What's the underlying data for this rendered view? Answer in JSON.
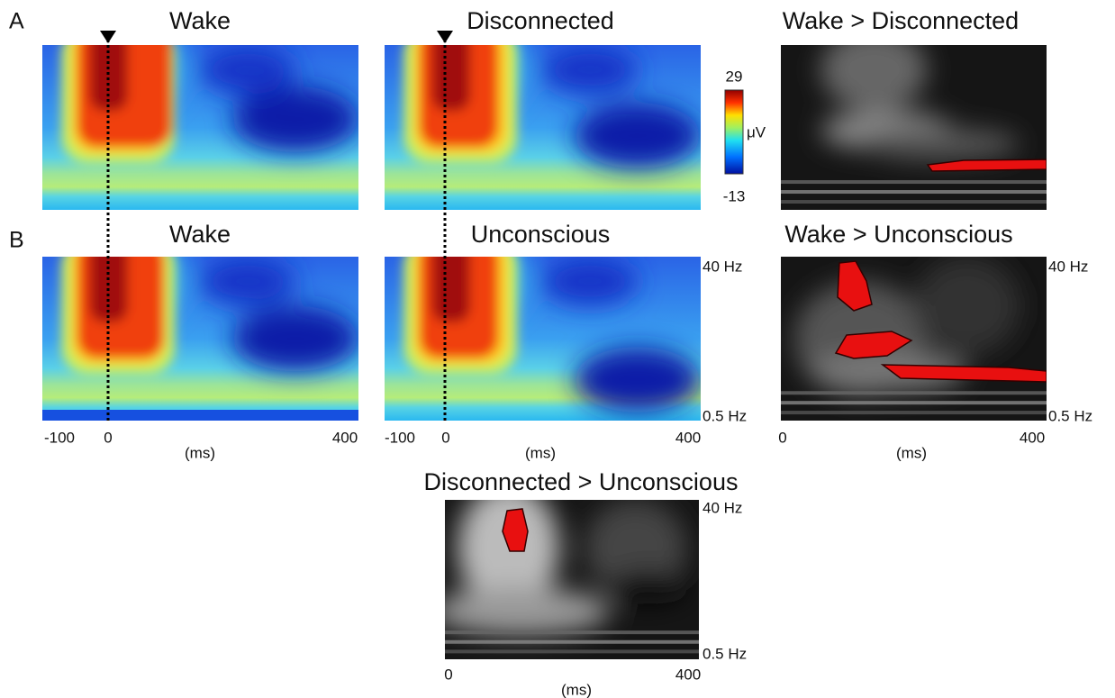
{
  "panel_labels": [
    "A",
    "B"
  ],
  "row_a": {
    "titles": [
      "Wake",
      "Disconnected",
      "Wake > Disconnected"
    ]
  },
  "colorbar": {
    "max": "29",
    "unit": "μV",
    "min": "-13"
  },
  "row_b": {
    "titles": [
      "Wake",
      "Unconscious",
      "Wake > Unconscious"
    ]
  },
  "bottom": {
    "title": "Disconnected > Unconscious"
  },
  "freq_labels": {
    "top": "40 Hz",
    "bottom": "0.5 Hz"
  },
  "time_axis": {
    "ticks_full": [
      "-100",
      "0",
      "400"
    ],
    "ticks_contrast": [
      "0",
      "400"
    ],
    "unit": "(ms)"
  }
}
